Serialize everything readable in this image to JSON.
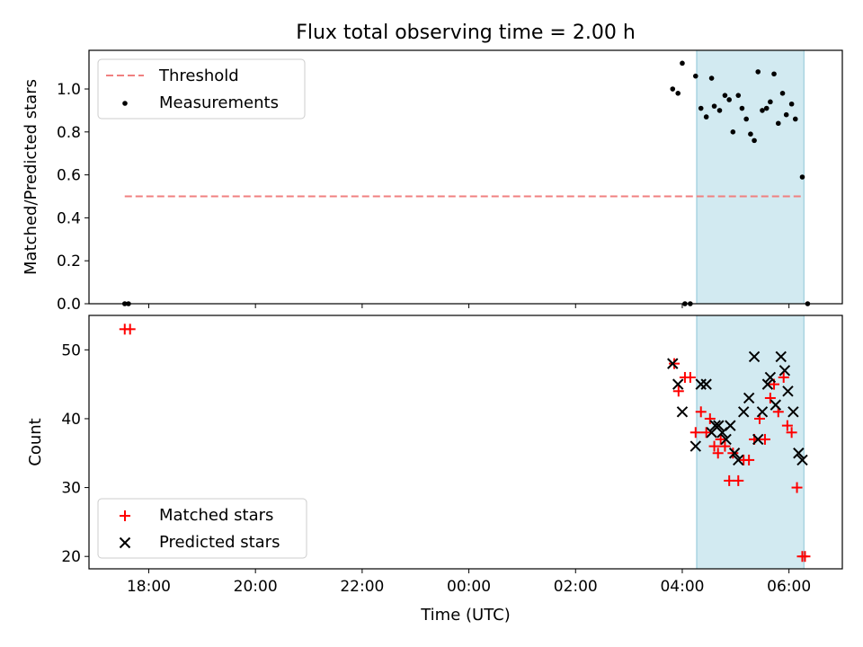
{
  "title": "Flux total observing time = 2.00 h",
  "xlabel": "Time (UTC)",
  "x_ticks": [
    "18:00",
    "20:00",
    "22:00",
    "00:00",
    "02:00",
    "04:00",
    "06:00"
  ],
  "colors": {
    "threshold": "#f08080",
    "measurements": "#000000",
    "matched": "#ff0000",
    "predicted": "#000000",
    "span": "#add8e6"
  },
  "chart_data": [
    {
      "type": "scatter",
      "ylabel": "Matched/Predicted stars",
      "ylim": [
        0,
        1.18
      ],
      "y_ticks": [
        "0.0",
        "0.2",
        "0.4",
        "0.6",
        "0.8",
        "1.0"
      ],
      "x_axis": "time (hours since 00:00 on the first day)",
      "xlim": [
        16.88,
        31.0
      ],
      "observing_span": [
        28.27,
        30.28
      ],
      "threshold": {
        "name": "Threshold",
        "value": 0.5,
        "x": [
          17.55,
          30.28
        ]
      },
      "series": [
        {
          "name": "Measurements",
          "points": [
            [
              17.55,
              0.0
            ],
            [
              17.62,
              0.0
            ],
            [
              27.82,
              1.0
            ],
            [
              27.92,
              0.98
            ],
            [
              28.0,
              1.12
            ],
            [
              28.05,
              0.0
            ],
            [
              28.15,
              0.0
            ],
            [
              28.25,
              1.06
            ],
            [
              28.35,
              0.91
            ],
            [
              28.45,
              0.87
            ],
            [
              28.55,
              1.05
            ],
            [
              28.6,
              0.92
            ],
            [
              28.7,
              0.9
            ],
            [
              28.8,
              0.97
            ],
            [
              28.88,
              0.95
            ],
            [
              28.95,
              0.8
            ],
            [
              29.05,
              0.97
            ],
            [
              29.12,
              0.91
            ],
            [
              29.2,
              0.86
            ],
            [
              29.28,
              0.79
            ],
            [
              29.35,
              0.76
            ],
            [
              29.42,
              1.08
            ],
            [
              29.5,
              0.9
            ],
            [
              29.58,
              0.91
            ],
            [
              29.65,
              0.94
            ],
            [
              29.72,
              1.07
            ],
            [
              29.8,
              0.84
            ],
            [
              29.88,
              0.98
            ],
            [
              29.95,
              0.88
            ],
            [
              30.05,
              0.93
            ],
            [
              30.12,
              0.86
            ],
            [
              30.25,
              0.59
            ],
            [
              30.35,
              0.0
            ]
          ]
        }
      ]
    },
    {
      "type": "scatter",
      "ylabel": "Count",
      "ylim": [
        18.2,
        55.0
      ],
      "y_ticks": [
        "20",
        "30",
        "40",
        "50"
      ],
      "xlim": [
        16.88,
        31.0
      ],
      "observing_span": [
        28.27,
        30.28
      ],
      "series": [
        {
          "name": "Matched stars",
          "points": [
            [
              17.55,
              53
            ],
            [
              17.65,
              53
            ],
            [
              27.85,
              48
            ],
            [
              27.93,
              44
            ],
            [
              28.05,
              46
            ],
            [
              28.15,
              46
            ],
            [
              28.25,
              38
            ],
            [
              28.35,
              41
            ],
            [
              28.45,
              38
            ],
            [
              28.52,
              40
            ],
            [
              28.6,
              36
            ],
            [
              28.67,
              35
            ],
            [
              28.72,
              37
            ],
            [
              28.8,
              36
            ],
            [
              28.88,
              31
            ],
            [
              28.95,
              35
            ],
            [
              29.05,
              31
            ],
            [
              29.15,
              34
            ],
            [
              29.25,
              34
            ],
            [
              29.35,
              37
            ],
            [
              29.45,
              40
            ],
            [
              29.55,
              37
            ],
            [
              29.65,
              43
            ],
            [
              29.72,
              45
            ],
            [
              29.8,
              41
            ],
            [
              29.9,
              46
            ],
            [
              29.97,
              39
            ],
            [
              30.05,
              38
            ],
            [
              30.15,
              30
            ],
            [
              30.25,
              20
            ],
            [
              30.3,
              20
            ]
          ]
        },
        {
          "name": "Predicted stars",
          "points": [
            [
              27.82,
              48
            ],
            [
              27.92,
              45
            ],
            [
              28.0,
              41
            ],
            [
              28.25,
              36
            ],
            [
              28.35,
              45
            ],
            [
              28.45,
              45
            ],
            [
              28.55,
              38
            ],
            [
              28.62,
              39
            ],
            [
              28.68,
              39
            ],
            [
              28.75,
              38
            ],
            [
              28.82,
              37
            ],
            [
              28.9,
              39
            ],
            [
              28.98,
              35
            ],
            [
              29.05,
              34
            ],
            [
              29.15,
              41
            ],
            [
              29.25,
              43
            ],
            [
              29.35,
              49
            ],
            [
              29.42,
              37
            ],
            [
              29.5,
              41
            ],
            [
              29.6,
              45
            ],
            [
              29.65,
              46
            ],
            [
              29.75,
              42
            ],
            [
              29.85,
              49
            ],
            [
              29.92,
              47
            ],
            [
              29.98,
              44
            ],
            [
              30.08,
              41
            ],
            [
              30.18,
              35
            ],
            [
              30.25,
              34
            ]
          ]
        }
      ]
    }
  ]
}
